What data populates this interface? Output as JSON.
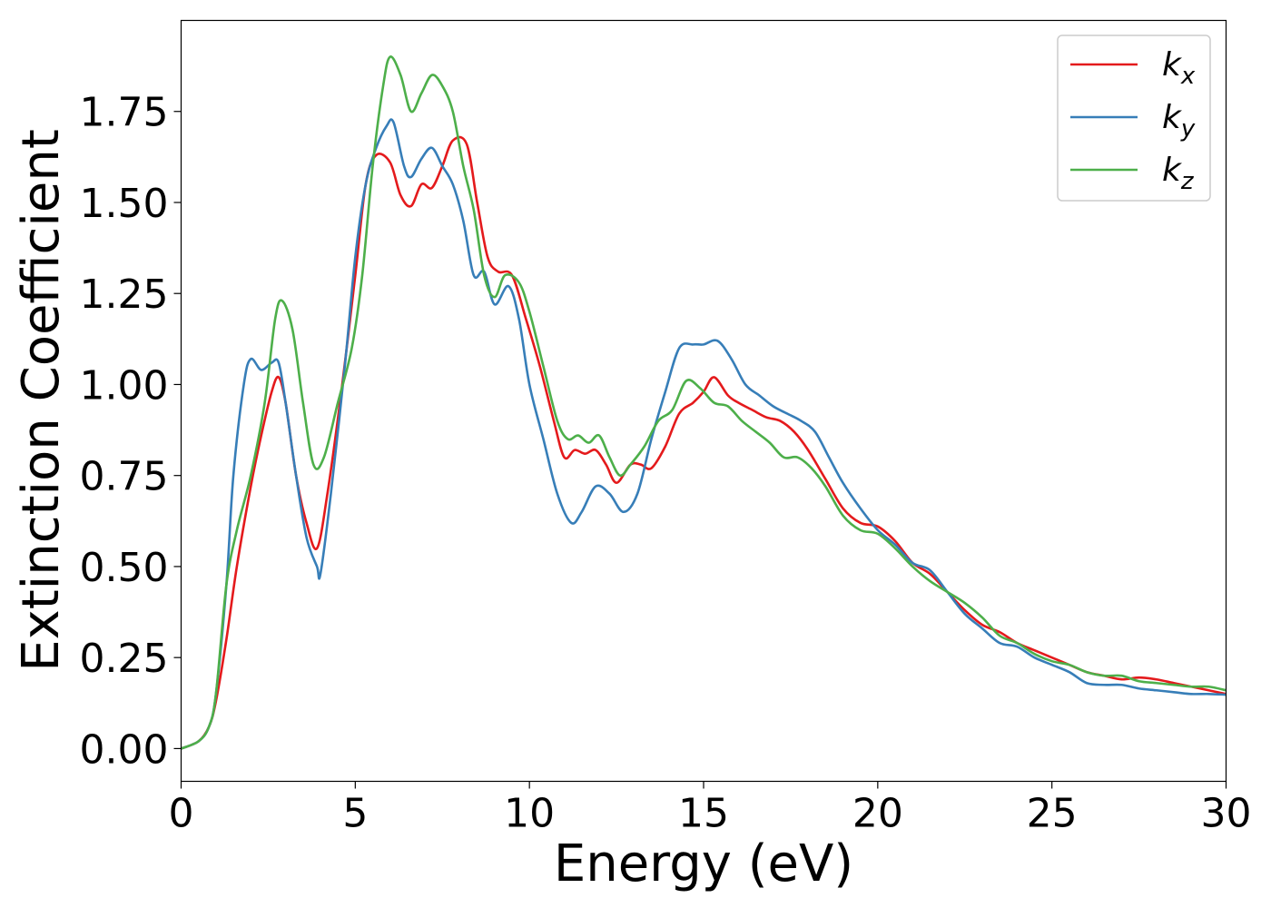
{
  "chart_data": {
    "type": "line",
    "title": "",
    "xlabel": "Energy (eV)",
    "ylabel": "Extinction Coefficient",
    "xlim": [
      0,
      30
    ],
    "ylim": [
      -0.09,
      2.0
    ],
    "xticks": [
      0,
      5,
      10,
      15,
      20,
      25,
      30
    ],
    "xtick_labels": [
      "0",
      "5",
      "10",
      "15",
      "20",
      "25",
      "30"
    ],
    "yticks": [
      0.0,
      0.25,
      0.5,
      0.75,
      1.0,
      1.25,
      1.5,
      1.75
    ],
    "ytick_labels": [
      "0.00",
      "0.25",
      "0.50",
      "0.75",
      "1.00",
      "1.25",
      "1.50",
      "1.75"
    ],
    "grid": false,
    "legend_position": "top-right",
    "series": [
      {
        "name": "k",
        "subscript": "x",
        "color": "#e41a1c",
        "points": [
          [
            0,
            0.0
          ],
          [
            0.5,
            0.02
          ],
          [
            0.8,
            0.06
          ],
          [
            1.0,
            0.13
          ],
          [
            1.3,
            0.3
          ],
          [
            1.6,
            0.5
          ],
          [
            2.0,
            0.72
          ],
          [
            2.3,
            0.86
          ],
          [
            2.6,
            0.98
          ],
          [
            2.8,
            1.02
          ],
          [
            3.0,
            0.95
          ],
          [
            3.3,
            0.75
          ],
          [
            3.6,
            0.62
          ],
          [
            3.9,
            0.55
          ],
          [
            4.2,
            0.7
          ],
          [
            4.6,
            0.98
          ],
          [
            5.0,
            1.3
          ],
          [
            5.3,
            1.55
          ],
          [
            5.6,
            1.63
          ],
          [
            6.0,
            1.61
          ],
          [
            6.3,
            1.52
          ],
          [
            6.6,
            1.49
          ],
          [
            6.9,
            1.55
          ],
          [
            7.2,
            1.54
          ],
          [
            7.5,
            1.6
          ],
          [
            7.8,
            1.67
          ],
          [
            8.2,
            1.66
          ],
          [
            8.5,
            1.5
          ],
          [
            8.8,
            1.35
          ],
          [
            9.1,
            1.31
          ],
          [
            9.5,
            1.3
          ],
          [
            9.9,
            1.18
          ],
          [
            10.3,
            1.05
          ],
          [
            10.7,
            0.9
          ],
          [
            11.0,
            0.8
          ],
          [
            11.3,
            0.82
          ],
          [
            11.6,
            0.81
          ],
          [
            11.9,
            0.82
          ],
          [
            12.2,
            0.78
          ],
          [
            12.5,
            0.73
          ],
          [
            12.9,
            0.78
          ],
          [
            13.2,
            0.78
          ],
          [
            13.5,
            0.77
          ],
          [
            13.9,
            0.83
          ],
          [
            14.3,
            0.92
          ],
          [
            14.7,
            0.95
          ],
          [
            15.0,
            0.98
          ],
          [
            15.3,
            1.02
          ],
          [
            15.7,
            0.97
          ],
          [
            16.0,
            0.95
          ],
          [
            16.4,
            0.93
          ],
          [
            16.8,
            0.91
          ],
          [
            17.2,
            0.9
          ],
          [
            17.6,
            0.87
          ],
          [
            18.0,
            0.82
          ],
          [
            18.5,
            0.74
          ],
          [
            19.0,
            0.66
          ],
          [
            19.5,
            0.62
          ],
          [
            20.0,
            0.61
          ],
          [
            20.5,
            0.57
          ],
          [
            21.0,
            0.51
          ],
          [
            21.5,
            0.48
          ],
          [
            22.0,
            0.43
          ],
          [
            22.5,
            0.38
          ],
          [
            23.0,
            0.34
          ],
          [
            23.5,
            0.32
          ],
          [
            24.0,
            0.29
          ],
          [
            24.5,
            0.27
          ],
          [
            25.0,
            0.25
          ],
          [
            25.5,
            0.23
          ],
          [
            26.0,
            0.21
          ],
          [
            26.5,
            0.2
          ],
          [
            27.0,
            0.19
          ],
          [
            27.5,
            0.195
          ],
          [
            28.0,
            0.19
          ],
          [
            28.5,
            0.18
          ],
          [
            29.0,
            0.17
          ],
          [
            29.5,
            0.16
          ],
          [
            30.0,
            0.15
          ]
        ]
      },
      {
        "name": "k",
        "subscript": "y",
        "color": "#377eb8",
        "points": [
          [
            0,
            0.0
          ],
          [
            0.5,
            0.02
          ],
          [
            0.8,
            0.06
          ],
          [
            1.0,
            0.15
          ],
          [
            1.3,
            0.45
          ],
          [
            1.5,
            0.75
          ],
          [
            1.8,
            1.0
          ],
          [
            2.0,
            1.07
          ],
          [
            2.3,
            1.04
          ],
          [
            2.6,
            1.06
          ],
          [
            2.8,
            1.06
          ],
          [
            3.0,
            0.95
          ],
          [
            3.3,
            0.75
          ],
          [
            3.6,
            0.58
          ],
          [
            3.9,
            0.5
          ],
          [
            4.0,
            0.48
          ],
          [
            4.3,
            0.7
          ],
          [
            4.7,
            1.05
          ],
          [
            5.0,
            1.35
          ],
          [
            5.3,
            1.55
          ],
          [
            5.6,
            1.65
          ],
          [
            5.9,
            1.71
          ],
          [
            6.1,
            1.72
          ],
          [
            6.4,
            1.6
          ],
          [
            6.6,
            1.57
          ],
          [
            6.9,
            1.62
          ],
          [
            7.2,
            1.65
          ],
          [
            7.5,
            1.6
          ],
          [
            7.8,
            1.55
          ],
          [
            8.1,
            1.45
          ],
          [
            8.4,
            1.3
          ],
          [
            8.7,
            1.31
          ],
          [
            9.0,
            1.22
          ],
          [
            9.4,
            1.27
          ],
          [
            9.7,
            1.18
          ],
          [
            10.0,
            1.0
          ],
          [
            10.4,
            0.85
          ],
          [
            10.8,
            0.7
          ],
          [
            11.2,
            0.62
          ],
          [
            11.5,
            0.65
          ],
          [
            11.9,
            0.72
          ],
          [
            12.3,
            0.7
          ],
          [
            12.7,
            0.65
          ],
          [
            13.1,
            0.7
          ],
          [
            13.5,
            0.85
          ],
          [
            13.9,
            0.98
          ],
          [
            14.3,
            1.1
          ],
          [
            14.7,
            1.11
          ],
          [
            15.0,
            1.11
          ],
          [
            15.4,
            1.12
          ],
          [
            15.8,
            1.07
          ],
          [
            16.2,
            1.0
          ],
          [
            16.6,
            0.97
          ],
          [
            17.0,
            0.94
          ],
          [
            17.4,
            0.92
          ],
          [
            17.8,
            0.9
          ],
          [
            18.2,
            0.87
          ],
          [
            18.6,
            0.8
          ],
          [
            19.0,
            0.73
          ],
          [
            19.5,
            0.66
          ],
          [
            20.0,
            0.6
          ],
          [
            20.5,
            0.56
          ],
          [
            21.0,
            0.51
          ],
          [
            21.5,
            0.49
          ],
          [
            22.0,
            0.43
          ],
          [
            22.5,
            0.37
          ],
          [
            23.0,
            0.33
          ],
          [
            23.5,
            0.29
          ],
          [
            24.0,
            0.28
          ],
          [
            24.5,
            0.25
          ],
          [
            25.0,
            0.23
          ],
          [
            25.5,
            0.21
          ],
          [
            26.0,
            0.18
          ],
          [
            26.5,
            0.175
          ],
          [
            27.0,
            0.175
          ],
          [
            27.5,
            0.165
          ],
          [
            28.0,
            0.16
          ],
          [
            28.5,
            0.155
          ],
          [
            29.0,
            0.15
          ],
          [
            29.5,
            0.15
          ],
          [
            30.0,
            0.148
          ]
        ]
      },
      {
        "name": "k",
        "subscript": "z",
        "color": "#4daf4a",
        "points": [
          [
            0,
            0.0
          ],
          [
            0.5,
            0.02
          ],
          [
            0.8,
            0.06
          ],
          [
            1.0,
            0.15
          ],
          [
            1.3,
            0.45
          ],
          [
            1.6,
            0.6
          ],
          [
            2.0,
            0.75
          ],
          [
            2.4,
            0.95
          ],
          [
            2.7,
            1.18
          ],
          [
            2.9,
            1.23
          ],
          [
            3.2,
            1.15
          ],
          [
            3.5,
            0.95
          ],
          [
            3.8,
            0.78
          ],
          [
            4.1,
            0.8
          ],
          [
            4.5,
            0.95
          ],
          [
            4.9,
            1.1
          ],
          [
            5.2,
            1.3
          ],
          [
            5.5,
            1.6
          ],
          [
            5.8,
            1.82
          ],
          [
            6.0,
            1.9
          ],
          [
            6.3,
            1.85
          ],
          [
            6.6,
            1.75
          ],
          [
            6.9,
            1.8
          ],
          [
            7.2,
            1.85
          ],
          [
            7.5,
            1.82
          ],
          [
            7.8,
            1.75
          ],
          [
            8.1,
            1.6
          ],
          [
            8.4,
            1.48
          ],
          [
            8.7,
            1.3
          ],
          [
            9.0,
            1.24
          ],
          [
            9.3,
            1.3
          ],
          [
            9.7,
            1.28
          ],
          [
            10.0,
            1.2
          ],
          [
            10.4,
            1.05
          ],
          [
            10.8,
            0.9
          ],
          [
            11.1,
            0.85
          ],
          [
            11.4,
            0.86
          ],
          [
            11.7,
            0.84
          ],
          [
            12.0,
            0.86
          ],
          [
            12.3,
            0.8
          ],
          [
            12.6,
            0.75
          ],
          [
            12.9,
            0.78
          ],
          [
            13.3,
            0.83
          ],
          [
            13.7,
            0.9
          ],
          [
            14.1,
            0.93
          ],
          [
            14.5,
            1.01
          ],
          [
            14.9,
            0.99
          ],
          [
            15.3,
            0.95
          ],
          [
            15.7,
            0.94
          ],
          [
            16.1,
            0.9
          ],
          [
            16.5,
            0.87
          ],
          [
            16.9,
            0.84
          ],
          [
            17.3,
            0.8
          ],
          [
            17.7,
            0.8
          ],
          [
            18.1,
            0.77
          ],
          [
            18.5,
            0.72
          ],
          [
            19.0,
            0.64
          ],
          [
            19.5,
            0.6
          ],
          [
            20.0,
            0.59
          ],
          [
            20.5,
            0.55
          ],
          [
            21.0,
            0.5
          ],
          [
            21.5,
            0.46
          ],
          [
            22.0,
            0.43
          ],
          [
            22.5,
            0.4
          ],
          [
            23.0,
            0.36
          ],
          [
            23.5,
            0.31
          ],
          [
            24.0,
            0.29
          ],
          [
            24.5,
            0.26
          ],
          [
            25.0,
            0.24
          ],
          [
            25.5,
            0.23
          ],
          [
            26.0,
            0.21
          ],
          [
            26.5,
            0.2
          ],
          [
            27.0,
            0.2
          ],
          [
            27.5,
            0.185
          ],
          [
            28.0,
            0.18
          ],
          [
            28.5,
            0.175
          ],
          [
            29.0,
            0.17
          ],
          [
            29.5,
            0.17
          ],
          [
            30.0,
            0.16
          ]
        ]
      }
    ]
  }
}
